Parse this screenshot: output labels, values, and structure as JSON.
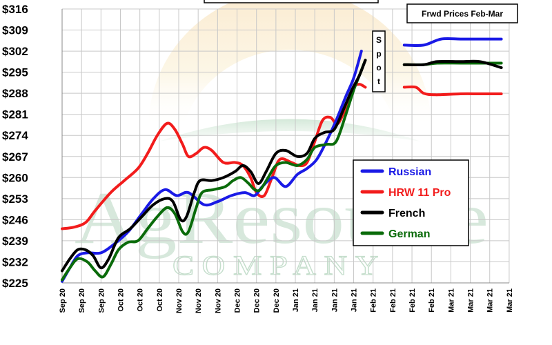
{
  "chart_data": {
    "type": "line",
    "y_ticks": [
      "$316",
      "$309",
      "$302",
      "$295",
      "$288",
      "$281",
      "$274",
      "$267",
      "$260",
      "$253",
      "$246",
      "$239",
      "$232",
      "$225"
    ],
    "ylim": [
      225,
      316
    ],
    "x_ticks": [
      "Sep 20",
      "Sep 20",
      "Sep 20",
      "Oct 20",
      "Oct 20",
      "Oct 20",
      "Nov 20",
      "Nov 20",
      "Nov 20",
      "Dec 20",
      "Dec 20",
      "Dec 20",
      "Jan 21",
      "Jan 21",
      "Jan 21",
      "Jan 21",
      "Feb 21",
      "Feb 21",
      "Feb 21",
      "Feb 21",
      "Mar 21",
      "Mar 21",
      "Mar 21",
      "Mar 21"
    ],
    "legend_position": "right-middle",
    "forward_box_label": "Frwd Prices Feb-Mar",
    "spot_label": "Spot",
    "watermark": {
      "name": "AgResource",
      "sub": "COMPANY"
    },
    "colors": {
      "Russian": "#1a1ae6",
      "HRW 11 Pro": "#f21c1c",
      "French": "#000000",
      "German": "#0a6b0a"
    },
    "series": [
      {
        "name": "Russian",
        "values": [
          [
            0,
            225.5
          ],
          [
            0.4,
            230
          ],
          [
            0.8,
            234
          ],
          [
            1.3,
            235
          ],
          [
            2,
            235
          ],
          [
            2.7,
            238
          ],
          [
            3.4,
            242
          ],
          [
            4.1,
            248
          ],
          [
            4.7,
            253
          ],
          [
            5.3,
            256
          ],
          [
            5.9,
            254
          ],
          [
            6.5,
            255
          ],
          [
            7.3,
            251
          ],
          [
            8,
            252
          ],
          [
            8.7,
            254
          ],
          [
            9.4,
            255
          ],
          [
            9.9,
            254
          ],
          [
            10.3,
            257
          ],
          [
            10.9,
            260
          ],
          [
            11.5,
            257
          ],
          [
            12.1,
            261
          ],
          [
            12.6,
            263
          ],
          [
            13.1,
            266
          ],
          [
            13.6,
            272
          ],
          [
            14.1,
            279
          ],
          [
            14.6,
            287
          ],
          [
            15.0,
            293
          ],
          [
            15.4,
            302
          ]
        ],
        "forward": [
          [
            17.6,
            304
          ],
          [
            18.6,
            304
          ],
          [
            19.5,
            306
          ],
          [
            20.5,
            306
          ],
          [
            21.5,
            306
          ],
          [
            22.6,
            306
          ]
        ]
      },
      {
        "name": "HRW 11 Pro",
        "values": [
          [
            0,
            243
          ],
          [
            0.6,
            243.5
          ],
          [
            1.2,
            245
          ],
          [
            1.7,
            249
          ],
          [
            2.5,
            255
          ],
          [
            3.2,
            259
          ],
          [
            3.9,
            263
          ],
          [
            4.4,
            268
          ],
          [
            4.9,
            274
          ],
          [
            5.4,
            278
          ],
          [
            5.8,
            276
          ],
          [
            6.2,
            271
          ],
          [
            6.5,
            267
          ],
          [
            6.9,
            268
          ],
          [
            7.3,
            270
          ],
          [
            7.7,
            269
          ],
          [
            8.3,
            265
          ],
          [
            8.9,
            265
          ],
          [
            9.3,
            264
          ],
          [
            9.7,
            260
          ],
          [
            10.0,
            255
          ],
          [
            10.4,
            254
          ],
          [
            10.8,
            260
          ],
          [
            11.2,
            266
          ],
          [
            11.8,
            265
          ],
          [
            12.2,
            264
          ],
          [
            12.6,
            265
          ],
          [
            13.0,
            272
          ],
          [
            13.4,
            279
          ],
          [
            13.8,
            280
          ],
          [
            14.2,
            278
          ],
          [
            14.7,
            285
          ],
          [
            15.0,
            290
          ],
          [
            15.3,
            291
          ],
          [
            15.6,
            290
          ]
        ],
        "forward": [
          [
            17.6,
            290
          ],
          [
            18.2,
            290
          ],
          [
            18.6,
            288
          ],
          [
            19.2,
            287.5
          ],
          [
            20.5,
            287.8
          ],
          [
            21.5,
            287.8
          ],
          [
            22.6,
            287.8
          ]
        ]
      },
      {
        "name": "French",
        "values": [
          [
            0,
            229
          ],
          [
            0.4,
            233
          ],
          [
            0.8,
            236
          ],
          [
            1.2,
            236
          ],
          [
            1.6,
            234
          ],
          [
            2.0,
            230
          ],
          [
            2.4,
            233
          ],
          [
            2.9,
            240
          ],
          [
            3.5,
            243
          ],
          [
            4.1,
            247
          ],
          [
            4.7,
            251
          ],
          [
            5.3,
            253
          ],
          [
            5.7,
            252
          ],
          [
            6.1,
            246
          ],
          [
            6.4,
            247
          ],
          [
            6.8,
            255
          ],
          [
            7.1,
            259
          ],
          [
            7.7,
            259
          ],
          [
            8.3,
            260
          ],
          [
            8.9,
            262
          ],
          [
            9.3,
            264
          ],
          [
            9.7,
            262
          ],
          [
            10.1,
            258
          ],
          [
            10.5,
            262
          ],
          [
            11.0,
            268
          ],
          [
            11.5,
            269
          ],
          [
            12.1,
            267
          ],
          [
            12.6,
            268
          ],
          [
            13.0,
            273
          ],
          [
            13.5,
            275
          ],
          [
            14.0,
            276
          ],
          [
            14.5,
            283
          ],
          [
            14.9,
            289
          ],
          [
            15.3,
            294
          ],
          [
            15.6,
            299
          ]
        ],
        "forward": [
          [
            17.6,
            297.5
          ],
          [
            18.6,
            297.5
          ],
          [
            19.3,
            298.5
          ],
          [
            20.5,
            298.5
          ],
          [
            21.5,
            298.5
          ],
          [
            22.6,
            296.5
          ]
        ]
      },
      {
        "name": "German",
        "values": [
          [
            0,
            226
          ],
          [
            0.4,
            230
          ],
          [
            0.8,
            233
          ],
          [
            1.3,
            232
          ],
          [
            1.7,
            229
          ],
          [
            2.1,
            227
          ],
          [
            2.5,
            231
          ],
          [
            2.9,
            236
          ],
          [
            3.4,
            238.5
          ],
          [
            3.9,
            239
          ],
          [
            4.4,
            243
          ],
          [
            4.9,
            247
          ],
          [
            5.4,
            250
          ],
          [
            5.8,
            248
          ],
          [
            6.2,
            242
          ],
          [
            6.5,
            242
          ],
          [
            6.9,
            250
          ],
          [
            7.2,
            255
          ],
          [
            7.8,
            256
          ],
          [
            8.4,
            257
          ],
          [
            8.8,
            259
          ],
          [
            9.2,
            260
          ],
          [
            9.6,
            258
          ],
          [
            9.9,
            256
          ],
          [
            10.2,
            256
          ],
          [
            10.6,
            260
          ],
          [
            11.0,
            264
          ],
          [
            11.5,
            265
          ],
          [
            12.1,
            264
          ],
          [
            12.6,
            266
          ],
          [
            13.0,
            270
          ],
          [
            13.6,
            271
          ],
          [
            14.1,
            272
          ],
          [
            14.6,
            281
          ],
          [
            15.0,
            289
          ],
          [
            15.3,
            294
          ],
          [
            15.6,
            299
          ]
        ],
        "forward": [
          [
            17.6,
            297.5
          ],
          [
            18.6,
            297.5
          ],
          [
            19.3,
            298
          ],
          [
            20.5,
            298
          ],
          [
            21.5,
            298
          ],
          [
            22.6,
            298
          ]
        ]
      }
    ]
  }
}
